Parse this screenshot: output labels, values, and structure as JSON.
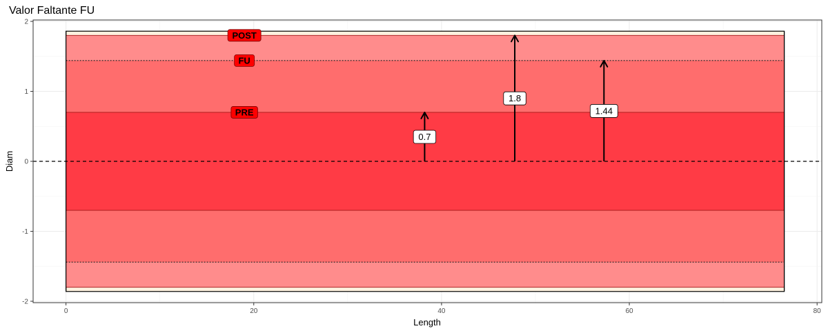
{
  "chart_data": {
    "type": "bar",
    "title": "Valor Faltante FU",
    "xlabel": "Length",
    "ylabel": "Diam",
    "xlim": [
      -3.5,
      80.5
    ],
    "ylim": [
      -2.02,
      2.02
    ],
    "x_ticks": [
      0,
      20,
      40,
      60,
      80
    ],
    "y_ticks": [
      -2,
      -1,
      0,
      1,
      2
    ],
    "grid": true,
    "vessel": {
      "x_start": 0,
      "x_end": 76.5,
      "half_diam": 1.86
    },
    "bands": [
      {
        "name": "POST",
        "half_width": 1.8,
        "color": "#ff8c8c",
        "line": "solid",
        "label_x": 19,
        "label_y": 1.8
      },
      {
        "name": "FU",
        "half_width": 1.44,
        "color": "#ff6d6d",
        "line": "dotted",
        "label_x": 19,
        "label_y": 1.44
      },
      {
        "name": "PRE",
        "half_width": 0.7,
        "color": "#ff3b45",
        "line": "solid",
        "label_x": 19,
        "label_y": 0.7
      }
    ],
    "arrows": [
      {
        "x": 38.2,
        "y": 0.7,
        "label": "0.7",
        "label_y": 0.35
      },
      {
        "x": 47.8,
        "y": 1.8,
        "label": "1.8",
        "label_y": 0.9
      },
      {
        "x": 57.3,
        "y": 1.44,
        "label": "1.44",
        "label_y": 0.72
      }
    ],
    "label_fill": "#ff0000"
  }
}
